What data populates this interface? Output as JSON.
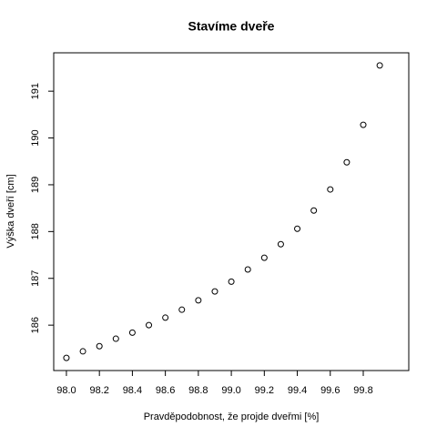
{
  "chart_data": {
    "type": "scatter",
    "title": "Stavíme dveře",
    "xlabel": "Pravděpodobnost, že projde dveřmi [%]",
    "ylabel": "Výška dveří [cm]",
    "x": [
      98.0,
      98.1,
      98.2,
      98.3,
      98.4,
      98.5,
      98.6,
      98.7,
      98.8,
      98.9,
      99.0,
      99.1,
      99.2,
      99.3,
      99.4,
      99.5,
      99.6,
      99.7,
      99.8,
      99.9
    ],
    "series": [
      {
        "color": "#000000",
        "values": [
          185.3,
          185.44,
          185.55,
          185.71,
          185.84,
          186.0,
          186.16,
          186.33,
          186.53,
          186.72,
          186.93,
          187.19,
          187.44,
          187.73,
          188.06,
          188.45,
          188.9,
          189.48,
          190.28,
          191.55
        ]
      }
    ],
    "xlim": [
      97.923,
      100.076
    ],
    "ylim": [
      185.03,
      191.82
    ],
    "xticks": [
      {
        "value": 98.0,
        "label": "98.0"
      },
      {
        "value": 98.2,
        "label": "98.2"
      },
      {
        "value": 98.4,
        "label": "98.4"
      },
      {
        "value": 98.6,
        "label": "98.6"
      },
      {
        "value": 98.8,
        "label": "98.8"
      },
      {
        "value": 99.0,
        "label": "99.0"
      },
      {
        "value": 99.2,
        "label": "99.2"
      },
      {
        "value": 99.4,
        "label": "99.4"
      },
      {
        "value": 99.6,
        "label": "99.6"
      },
      {
        "value": 99.8,
        "label": "99.8"
      }
    ],
    "yticks": [
      186,
      187,
      188,
      189,
      190,
      191
    ]
  }
}
